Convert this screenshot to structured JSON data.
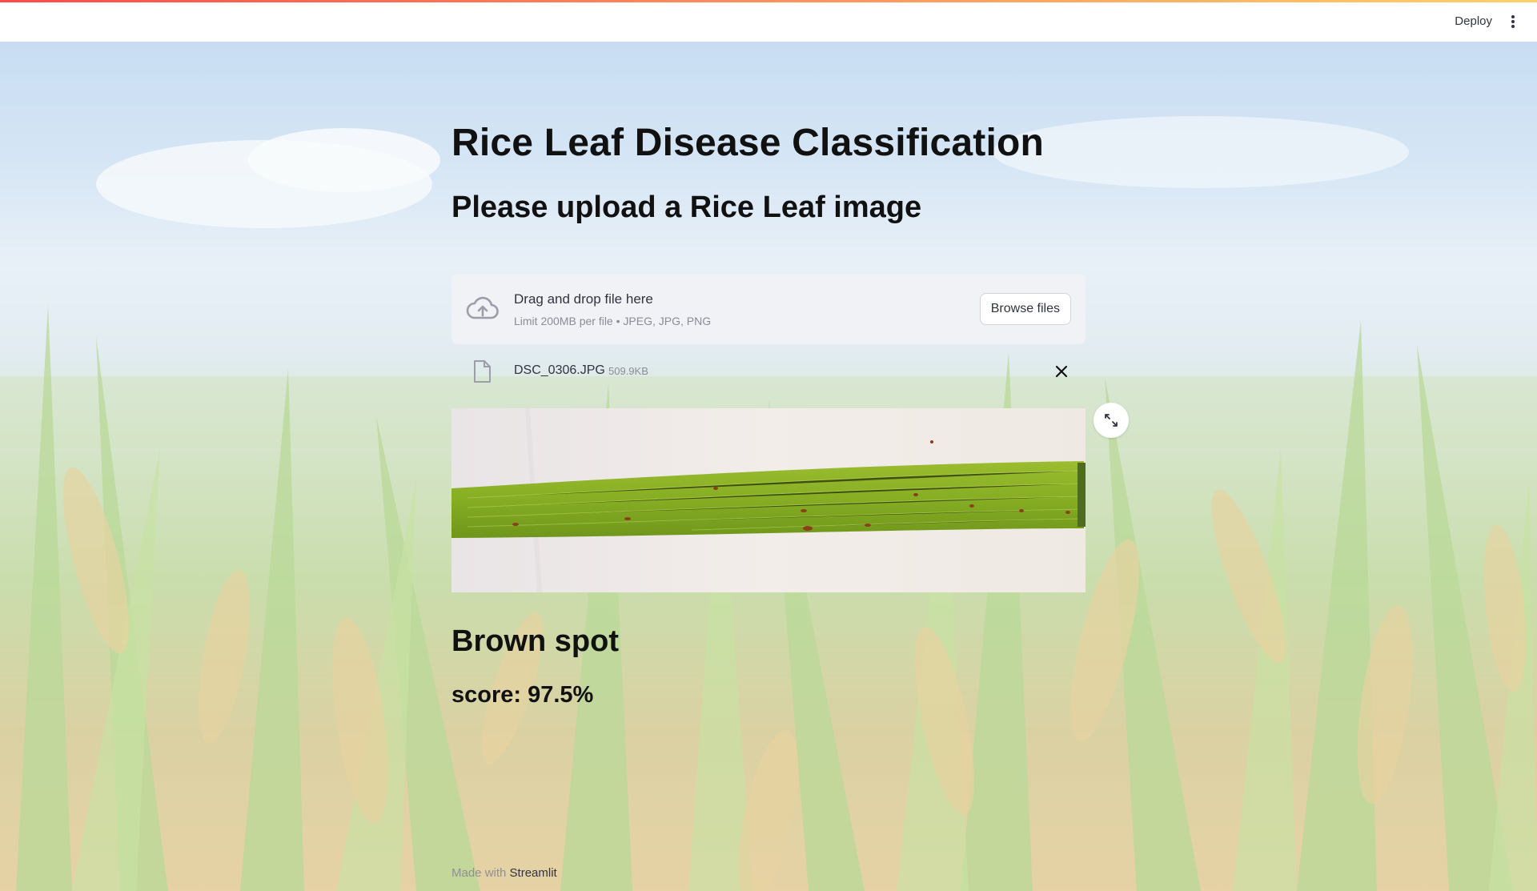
{
  "header": {
    "deploy_label": "Deploy"
  },
  "main": {
    "title": "Rice Leaf Disease Classification",
    "subtitle": "Please upload a Rice Leaf image",
    "uploader": {
      "drag_text": "Drag and drop file here",
      "limit_text": "Limit 200MB per file • JPEG, JPG, PNG",
      "browse_label": "Browse files",
      "file_name": "DSC_0306.JPG",
      "file_size": "509.9KB"
    },
    "result": {
      "label": "Brown spot",
      "score_text": "score: 97.5%"
    }
  },
  "footer": {
    "made_with": "Made with",
    "brand": "Streamlit"
  },
  "colors": {
    "accent_gradient_start": "#ff4b4b",
    "accent_gradient_end": "#ffd16a",
    "text": "#31333f",
    "muted": "#8a8c96",
    "dropzone_bg": "#f0f2f6"
  },
  "icons": {
    "kebab": "vertical-dots-icon",
    "upload": "cloud-upload-icon",
    "file": "file-icon",
    "close": "close-icon",
    "fullscreen": "expand-icon"
  }
}
